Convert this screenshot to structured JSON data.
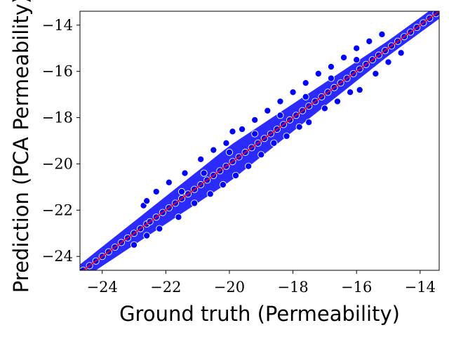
{
  "chart_data": {
    "type": "scatter",
    "title": "",
    "xlabel": "Ground truth (Permeability)",
    "ylabel": "Prediction (PCA Permeability)",
    "xlim": [
      -24.7,
      -13.4
    ],
    "ylim": [
      -24.6,
      -13.4
    ],
    "xticks": [
      -24,
      -22,
      -20,
      -18,
      -16,
      -14
    ],
    "yticks": [
      -24,
      -22,
      -20,
      -18,
      -16,
      -14
    ],
    "grid": false,
    "legend": "none",
    "point_color": "#0000ff",
    "point_edge_color": "#ffffff",
    "line_color": "#ff0000",
    "identity_line": {
      "x": [
        -24.7,
        -13.4
      ],
      "y": [
        -24.7,
        -13.4
      ]
    },
    "series": [
      {
        "x": [
          -24.6,
          -24.4,
          -24.2,
          -24.0,
          -23.8,
          -23.6,
          -23.4,
          -23.2,
          -23.0,
          -22.8,
          -22.6,
          -22.5,
          -22.3,
          -22.1,
          -21.9,
          -21.7,
          -21.5,
          -21.3,
          -21.1,
          -20.9,
          -20.7,
          -20.5,
          -20.3,
          -20.1,
          -19.9,
          -19.7,
          -19.5,
          -19.3,
          -19.1,
          -18.9,
          -18.7,
          -18.5,
          -18.3,
          -18.1,
          -17.9,
          -17.7,
          -17.5,
          -17.3,
          -17.1,
          -16.9,
          -16.7,
          -16.5,
          -16.3,
          -16.1,
          -15.9,
          -15.7,
          -15.5,
          -15.3,
          -15.1,
          -14.9,
          -14.7,
          -14.5,
          -14.3,
          -14.1,
          -13.9,
          -13.7,
          -13.5,
          -22.7,
          -22.6,
          -22.3,
          -21.9,
          -21.4,
          -20.9,
          -20.5,
          -20.1,
          -19.9,
          -19.6,
          -19.2,
          -18.8,
          -18.4,
          -18.0,
          -17.6,
          -17.2,
          -16.8,
          -16.4,
          -16.0,
          -15.6,
          -15.2,
          -23.0,
          -22.6,
          -22.2,
          -21.6,
          -21.1,
          -20.6,
          -20.2,
          -19.8,
          -19.4,
          -19.0,
          -18.6,
          -18.2,
          -17.8,
          -17.5,
          -17.0,
          -16.6,
          -16.2,
          -15.9,
          -15.4,
          -15.0,
          -14.6,
          -21.5,
          -20.8,
          -20.0,
          -19.2,
          -18.4,
          -17.6,
          -16.8,
          -16.0
        ],
        "y": [
          -24.6,
          -24.4,
          -24.2,
          -24.0,
          -23.8,
          -23.6,
          -23.4,
          -23.2,
          -23.0,
          -22.8,
          -22.6,
          -22.5,
          -22.3,
          -22.1,
          -21.9,
          -21.7,
          -21.5,
          -21.3,
          -21.1,
          -20.9,
          -20.7,
          -20.5,
          -20.3,
          -20.1,
          -19.9,
          -19.7,
          -19.5,
          -19.3,
          -19.1,
          -18.9,
          -18.7,
          -18.5,
          -18.3,
          -18.1,
          -17.9,
          -17.7,
          -17.5,
          -17.3,
          -17.1,
          -16.9,
          -16.7,
          -16.5,
          -16.3,
          -16.1,
          -15.9,
          -15.7,
          -15.5,
          -15.3,
          -15.1,
          -14.9,
          -14.7,
          -14.5,
          -14.3,
          -14.1,
          -13.9,
          -13.7,
          -13.5,
          -21.8,
          -21.6,
          -21.2,
          -20.8,
          -20.4,
          -19.8,
          -19.4,
          -19.1,
          -18.6,
          -18.5,
          -18.1,
          -17.7,
          -17.3,
          -16.9,
          -16.5,
          -16.1,
          -15.8,
          -15.4,
          -15.0,
          -14.7,
          -14.4,
          -23.5,
          -23.1,
          -22.8,
          -22.3,
          -21.7,
          -21.3,
          -20.9,
          -20.5,
          -20.1,
          -19.6,
          -19.1,
          -18.8,
          -18.4,
          -18.2,
          -17.6,
          -17.3,
          -16.9,
          -16.8,
          -16.1,
          -15.6,
          -15.2,
          -21.2,
          -20.4,
          -19.5,
          -18.7,
          -17.9,
          -17.1,
          -16.3,
          -15.5
        ]
      }
    ]
  }
}
